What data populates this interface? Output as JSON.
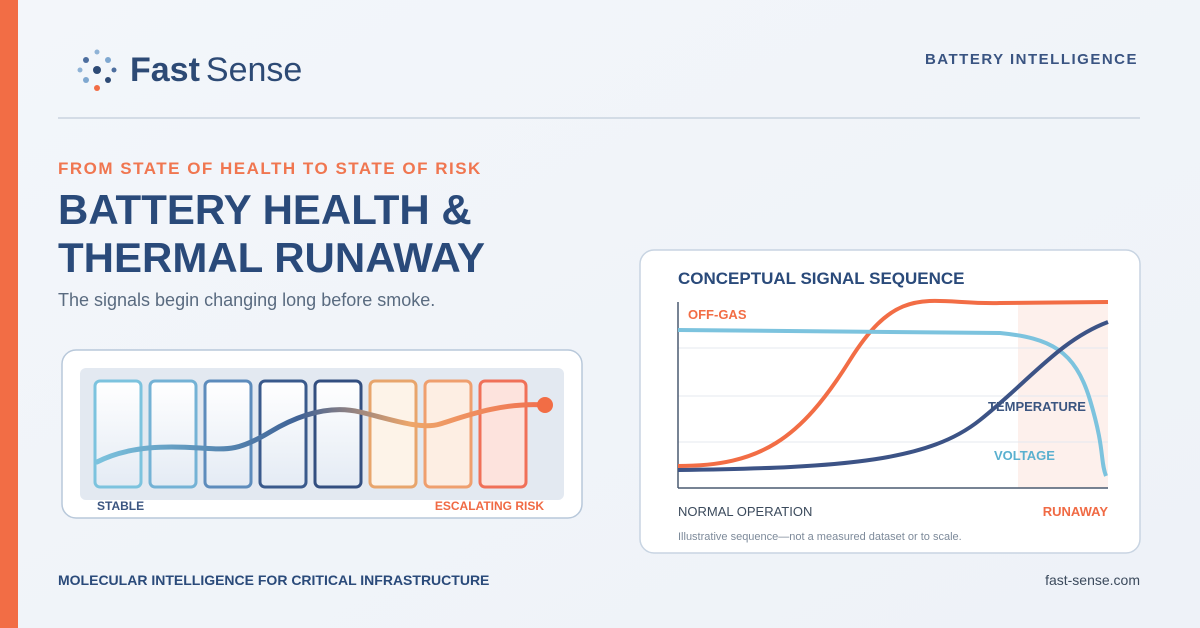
{
  "brand": {
    "name_bold": "Fast",
    "name_light": "Sense"
  },
  "header": {
    "tag": "BATTERY INTELLIGENCE"
  },
  "hero": {
    "eyebrow": "FROM STATE OF HEALTH TO STATE OF RISK",
    "title_lines": [
      "BATTERY HEALTH &",
      "THERMAL RUNAWAY"
    ],
    "subtitle": "The signals begin changing long before smoke."
  },
  "cells": {
    "start_label": "STABLE",
    "end_label": "ESCALATING RISK"
  },
  "signal_card": {
    "title": "CONCEPTUAL SIGNAL SEQUENCE",
    "series_labels": [
      "OFF-GAS",
      "TEMPERATURE",
      "VOLTAGE"
    ],
    "x_start": "NORMAL OPERATION",
    "x_end": "RUNAWAY",
    "note": "Illustrative sequence—not a measured dataset or to scale."
  },
  "footer": {
    "tagline": "MOLECULAR INTELLIGENCE FOR CRITICAL INFRASTRUCTURE",
    "url": "fast-sense.com"
  }
}
